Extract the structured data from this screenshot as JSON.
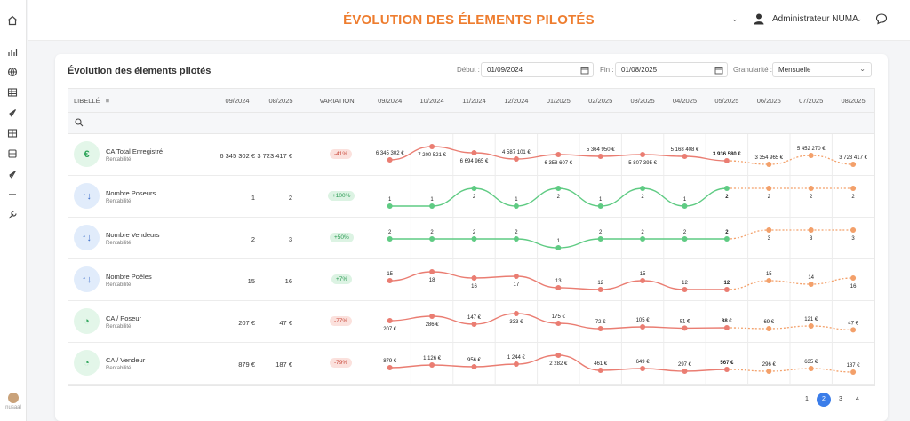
{
  "header": {
    "title": "ÉVOLUTION DES ÉLEMENTS PILOTÉS",
    "user_name": "Administrateur NUMA"
  },
  "sidebar": {
    "icons": [
      "home-icon",
      "bar-chart-icon",
      "globe-icon",
      "table-icon",
      "rocket-icon",
      "grid-icon",
      "archive-icon",
      "rocket-icon-2",
      "minus-icon",
      "wrench-icon"
    ],
    "brand": "nusaal"
  },
  "card": {
    "title": "Évolution des élements pilotés",
    "filters": {
      "start_label": "Début :",
      "start_value": "01/09/2024",
      "end_label": "Fin :",
      "end_value": "01/08/2025",
      "granularity_label": "Granularité :",
      "granularity_value": "Mensuelle"
    }
  },
  "table": {
    "headers": {
      "libelle": "LIBELLÉ",
      "start": "09/2024",
      "end": "08/2025",
      "variation": "VARIATION"
    },
    "months": [
      "09/2024",
      "10/2024",
      "11/2024",
      "12/2024",
      "01/2025",
      "02/2025",
      "03/2025",
      "04/2025",
      "05/2025",
      "06/2025",
      "07/2025",
      "08/2025"
    ],
    "rows": [
      {
        "name": "CA Total Enregistré",
        "sub": "Rentabilité",
        "icon": "euro-icon",
        "icon_color": "green",
        "icon_glyph": "€",
        "start": "6 345 302 €",
        "end": "3 723 417 €",
        "variation": "-41%",
        "trend": "neg",
        "values": [
          6345302,
          7200521,
          6694965,
          4587101,
          6358607,
          5364950,
          5807395,
          5168408,
          3936580,
          3354965,
          5452270,
          3723417
        ],
        "labels": [
          "6 345 302 €",
          "7 200 521 €",
          "6 694 965 €",
          "4 587 101 €",
          "6 358 607 €",
          "5 364 950 €",
          "5 807 395 €",
          "5 168 408 €",
          "3 936 580 €",
          "3 354 965 €",
          "5 452 270 €",
          "3 723 417 €"
        ],
        "color": "#ea7d72",
        "points_y": [
          0.75,
          0.0,
          0.35,
          0.7,
          0.45,
          0.55,
          0.45,
          0.55,
          0.8,
          1.0,
          0.5,
          1.0
        ]
      },
      {
        "name": "Nombre Poseurs",
        "sub": "Rentabilité",
        "icon": "arrows-updown-icon",
        "icon_color": "blue",
        "icon_glyph": "↑↓",
        "start": "1",
        "end": "2",
        "variation": "+100%",
        "trend": "pos",
        "values": [
          1,
          1,
          2,
          1,
          2,
          1,
          2,
          1,
          2,
          2,
          2,
          2
        ],
        "labels": [
          "1",
          "1",
          "2",
          "1",
          "2",
          "1",
          "2",
          "1",
          "2",
          "2",
          "2",
          "2"
        ],
        "color": "#5fcb83",
        "points_y": [
          1,
          1,
          0,
          1,
          0,
          1,
          0,
          1,
          0,
          0,
          0,
          0
        ]
      },
      {
        "name": "Nombre Vendeurs",
        "sub": "Rentabilité",
        "icon": "arrows-updown-icon",
        "icon_color": "blue",
        "icon_glyph": "↑↓",
        "start": "2",
        "end": "3",
        "variation": "+50%",
        "trend": "pos",
        "values": [
          2,
          2,
          2,
          2,
          1,
          2,
          2,
          2,
          2,
          3,
          3,
          3
        ],
        "labels": [
          "2",
          "2",
          "2",
          "2",
          "1",
          "2",
          "2",
          "2",
          "2",
          "3",
          "3",
          "3"
        ],
        "color": "#5fcb83",
        "points_y": [
          0.5,
          0.5,
          0.5,
          0.5,
          1.0,
          0.5,
          0.5,
          0.5,
          0.5,
          0.0,
          0.0,
          0.0
        ]
      },
      {
        "name": "Nombre Poêles",
        "sub": "Rentabilité",
        "icon": "arrows-updown-icon",
        "icon_color": "blue",
        "icon_glyph": "↑↓",
        "start": "15",
        "end": "16",
        "variation": "+7%",
        "trend": "pos",
        "values": [
          15,
          18,
          16,
          17,
          13,
          12,
          15,
          12,
          12,
          15,
          14,
          16
        ],
        "labels": [
          "15",
          "18",
          "16",
          "17",
          "13",
          "12",
          "15",
          "12",
          "12",
          "15",
          "14",
          "16"
        ],
        "color": "#ea7d72",
        "points_y": [
          0.5,
          0.0,
          0.35,
          0.25,
          0.9,
          1.0,
          0.5,
          1.0,
          1.0,
          0.5,
          0.7,
          0.35
        ]
      },
      {
        "name": "CA / Poseur",
        "sub": "Rentabilité",
        "icon": "gauge-icon",
        "icon_color": "green",
        "icon_glyph": "◔",
        "start": "207 €",
        "end": "47 €",
        "variation": "-77%",
        "trend": "neg",
        "values": [
          207,
          286,
          147,
          333,
          175,
          72,
          105,
          81,
          88,
          69,
          121,
          47
        ],
        "labels": [
          "207 €",
          "286 €",
          "147 €",
          "333 €",
          "175 €",
          "72 €",
          "105 €",
          "81 €",
          "88 €",
          "69 €",
          "121 €",
          "47 €"
        ],
        "color": "#ea7d72",
        "points_y": [
          0.4,
          0.15,
          0.6,
          0.0,
          0.55,
          0.85,
          0.75,
          0.82,
          0.8,
          0.85,
          0.7,
          0.92
        ]
      },
      {
        "name": "CA / Vendeur",
        "sub": "Rentabilité",
        "icon": "gauge-icon",
        "icon_color": "green",
        "icon_glyph": "◔",
        "start": "879 €",
        "end": "187 €",
        "variation": "-79%",
        "trend": "neg",
        "values": [
          879,
          1126,
          956,
          1244,
          2282,
          461,
          649,
          297,
          567,
          296,
          635,
          187
        ],
        "labels": [
          "879 €",
          "1 126 €",
          "956 €",
          "1 244 €",
          "2 282 €",
          "461 €",
          "649 €",
          "297 €",
          "567 €",
          "296 €",
          "635 €",
          "187 €"
        ],
        "color": "#ea7d72",
        "points_y": [
          0.7,
          0.55,
          0.65,
          0.5,
          0.0,
          0.85,
          0.75,
          0.9,
          0.8,
          0.9,
          0.75,
          0.95
        ]
      }
    ],
    "forecast_color": "#f3a06a",
    "forecast_from_index": 8
  },
  "pagination": {
    "pages": [
      "1",
      "2",
      "3",
      "4"
    ],
    "active": "2"
  }
}
